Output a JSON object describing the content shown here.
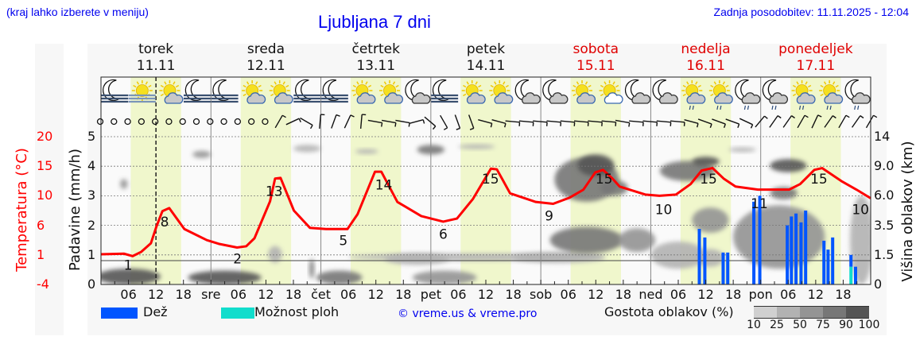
{
  "header": {
    "hint": "(kraj lahko izberete v meniju)",
    "title": "Ljubljana 7 dni",
    "updated": "Zadnja posodobitev: 11.11.2025 - 12:04"
  },
  "days": [
    {
      "name": "torek",
      "date": "11.11",
      "weekend": false
    },
    {
      "name": "sreda",
      "date": "12.11",
      "weekend": false
    },
    {
      "name": "četrtek",
      "date": "13.11",
      "weekend": false
    },
    {
      "name": "petek",
      "date": "14.11",
      "weekend": false
    },
    {
      "name": "sobota",
      "date": "15.11",
      "weekend": true
    },
    {
      "name": "nedelja",
      "date": "16.11",
      "weekend": true
    },
    {
      "name": "ponedeljek",
      "date": "17.11",
      "weekend": true
    }
  ],
  "axes": {
    "temp_label": "Temperatura (°C)",
    "rain_label": "Padavine (mm/h)",
    "cloud_label": "Višina oblakov (km)",
    "temp_ticks": [
      "20",
      "15",
      "10",
      "6",
      "1",
      "-4"
    ],
    "rain_ticks": [
      "5",
      "4",
      "3",
      "2",
      "1",
      "0"
    ],
    "cloud_ticks": [
      "14",
      "9.0",
      "6.0",
      "3.5",
      "1.5",
      "0"
    ],
    "x_ticks": [
      "06",
      "12",
      "18",
      "sre",
      "06",
      "12",
      "18",
      "čet",
      "06",
      "12",
      "18",
      "pet",
      "06",
      "12",
      "18",
      "sob",
      "06",
      "12",
      "18",
      "ned",
      "06",
      "12",
      "18",
      "pon",
      "06",
      "12",
      "18"
    ]
  },
  "legend": {
    "rain": "Dež",
    "showers": "Možnost ploh",
    "copyright": "© vreme.us & vreme.pro",
    "cloud_density": "Gostota oblakov (%)",
    "density_steps": [
      "10",
      "25",
      "50",
      "75",
      "90",
      "100"
    ]
  },
  "colors": {
    "rain": "#0055ff",
    "showers": "#11ddcc",
    "temp": "#ff0000",
    "daylight": "#f0f7cc",
    "title": "#0000ee",
    "density": [
      "#d0d0d0",
      "#b2b2b2",
      "#949494",
      "#777777",
      "#555555"
    ]
  },
  "chart_data": {
    "type": "line",
    "title": "Ljubljana 7 dni",
    "x_unit": "hours since Tue 11.11 00:00",
    "xlim": [
      0,
      168
    ],
    "now_hour": 12,
    "daylight_hours": [
      6.5,
      17.5
    ],
    "temperature": {
      "ylim": [
        -4,
        20
      ],
      "hours": [
        0,
        5,
        6.9,
        8.8,
        10.9,
        12.1,
        13.4,
        14.9,
        18.2,
        23.1,
        25.7,
        29.7,
        31.7,
        33.5,
        36.9,
        38,
        39.2,
        42.1,
        45.6,
        49.1,
        53.8,
        56,
        59.8,
        61.2,
        64.7,
        69.9,
        74.7,
        77.7,
        81.2,
        85.1,
        86.4,
        89.3,
        94.9,
        98.7,
        102.3,
        105.3,
        107.9,
        109.6,
        111.5,
        113.2,
        118.8,
        121.9,
        125.5,
        128.7,
        131.1,
        133.5,
        135.9,
        138.5,
        143.4,
        150.2,
        152.6,
        155.7,
        157.4,
        161.8,
        164.9,
        168
      ],
      "values": [
        0.9,
        1.0,
        0.6,
        1.3,
        2.7,
        5.4,
        7.9,
        8.4,
        5.0,
        3.2,
        2.6,
        2.0,
        2.2,
        3.5,
        9.5,
        13.2,
        13.3,
        8.0,
        5.2,
        5.0,
        5.0,
        7.4,
        14.3,
        14.3,
        9.4,
        7.1,
        6.2,
        6.7,
        9.9,
        14.8,
        14.7,
        10.8,
        9.4,
        9.1,
        10.1,
        11.4,
        14.2,
        14.6,
        13.3,
        11.9,
        10.6,
        10.4,
        10.6,
        12.3,
        14.5,
        14.9,
        13.2,
        11.9,
        11.4,
        11.4,
        12.3,
        14.6,
        14.9,
        12.7,
        11.4,
        10.0
      ],
      "labels": [
        {
          "h": 5.9,
          "v": "1"
        },
        {
          "h": 13.9,
          "v": "8"
        },
        {
          "h": 29.8,
          "v": "2"
        },
        {
          "h": 37.8,
          "v": "13"
        },
        {
          "h": 52.9,
          "v": "5"
        },
        {
          "h": 61.7,
          "v": "14"
        },
        {
          "h": 74.7,
          "v": "6"
        },
        {
          "h": 85,
          "v": "15"
        },
        {
          "h": 97.8,
          "v": "9"
        },
        {
          "h": 109.8,
          "v": "15"
        },
        {
          "h": 122.8,
          "v": "10"
        },
        {
          "h": 132.6,
          "v": "15"
        },
        {
          "h": 143.7,
          "v": "11"
        },
        {
          "h": 156.7,
          "v": "15"
        },
        {
          "h": 167.6,
          "v": "10"
        }
      ]
    },
    "precipitation": {
      "ylim": [
        0,
        5
      ],
      "bars": [
        {
          "h": 130.6,
          "rain": 1.88,
          "showers": 0
        },
        {
          "h": 131.8,
          "rain": 1.59,
          "showers": 0
        },
        {
          "h": 135.8,
          "rain": 1.08,
          "showers": 0
        },
        {
          "h": 136.8,
          "rain": 1.08,
          "showers": 0
        },
        {
          "h": 142.5,
          "rain": 2.8,
          "showers": 0
        },
        {
          "h": 143.8,
          "rain": 3.0,
          "showers": 0
        },
        {
          "h": 149.8,
          "rain": 2.0,
          "showers": 0
        },
        {
          "h": 150.7,
          "rain": 2.3,
          "showers": 0
        },
        {
          "h": 151.7,
          "rain": 2.4,
          "showers": 0
        },
        {
          "h": 152.8,
          "rain": 2.1,
          "showers": 0
        },
        {
          "h": 153.8,
          "rain": 2.5,
          "showers": 0
        },
        {
          "h": 157.8,
          "rain": 1.48,
          "showers": 0
        },
        {
          "h": 158.7,
          "rain": 1.18,
          "showers": 0
        },
        {
          "h": 159.7,
          "rain": 1.59,
          "showers": 0
        },
        {
          "h": 163.7,
          "rain": 0.4,
          "showers": 0.6
        },
        {
          "h": 164.7,
          "rain": 0.6,
          "showers": 0
        }
      ]
    },
    "cloud_scale_km": [
      0,
      1.5,
      3.5,
      6,
      9,
      14
    ],
    "clouds": [
      {
        "h": 6,
        "km": 0.4,
        "dh": 7,
        "dkm": 0.4,
        "d": 90
      },
      {
        "h": 27,
        "km": 0.35,
        "dh": 8,
        "dkm": 0.35,
        "d": 90
      },
      {
        "h": 52,
        "km": 0.35,
        "dh": 5,
        "dkm": 0.35,
        "d": 85
      },
      {
        "h": 75,
        "km": 0.35,
        "dh": 7,
        "dkm": 0.35,
        "d": 70
      },
      {
        "h": 82,
        "km": 1.4,
        "dh": 28,
        "dkm": 0.2,
        "d": 35
      },
      {
        "h": 100,
        "km": 1.4,
        "dh": 10,
        "dkm": 0.3,
        "d": 40
      },
      {
        "h": 106,
        "km": 2.5,
        "dh": 8,
        "dkm": 0.9,
        "d": 75
      },
      {
        "h": 106,
        "km": 8,
        "dh": 7,
        "dkm": 2.5,
        "d": 75
      },
      {
        "h": 108,
        "km": 9.5,
        "dh": 4,
        "dkm": 1.5,
        "d": 95
      },
      {
        "h": 112,
        "km": 6.8,
        "dh": 3,
        "dkm": 0.8,
        "d": 80
      },
      {
        "h": 117,
        "km": 2.5,
        "dh": 4,
        "dkm": 0.8,
        "d": 60
      },
      {
        "h": 128,
        "km": 8.7,
        "dh": 6,
        "dkm": 1.2,
        "d": 75
      },
      {
        "h": 132,
        "km": 9.8,
        "dh": 3,
        "dkm": 0.8,
        "d": 90
      },
      {
        "h": 133,
        "km": 4,
        "dh": 4,
        "dkm": 1,
        "d": 50
      },
      {
        "h": 133,
        "km": 1.4,
        "dh": 3,
        "dkm": 0.5,
        "d": 40
      },
      {
        "h": 148,
        "km": 3,
        "dh": 10,
        "dkm": 2.2,
        "d": 50
      },
      {
        "h": 149,
        "km": 6.3,
        "dh": 3,
        "dkm": 0.6,
        "d": 80
      },
      {
        "h": 150,
        "km": 9.3,
        "dh": 4,
        "dkm": 0.9,
        "d": 95
      },
      {
        "h": 140,
        "km": 11.8,
        "dh": 3,
        "dkm": 0.3,
        "d": 40
      },
      {
        "h": 166,
        "km": 3,
        "dh": 2.5,
        "dkm": 3,
        "d": 45
      },
      {
        "h": 22,
        "km": 11,
        "dh": 2,
        "dkm": 0.6,
        "d": 60
      },
      {
        "h": 45,
        "km": 12,
        "dh": 3,
        "dkm": 0.6,
        "d": 45
      },
      {
        "h": 5,
        "km": 7.2,
        "dh": 0.8,
        "dkm": 0.5,
        "d": 50
      },
      {
        "h": 58,
        "km": 11.5,
        "dh": 2.5,
        "dkm": 0.4,
        "d": 35
      },
      {
        "h": 72,
        "km": 11.8,
        "dh": 3,
        "dkm": 0.8,
        "d": 85
      },
      {
        "h": 82,
        "km": 12.3,
        "dh": 4,
        "dkm": 0.4,
        "d": 35
      },
      {
        "h": 38,
        "km": 1.6,
        "dh": 1.5,
        "dkm": 0.5,
        "d": 25
      },
      {
        "h": 46,
        "km": 0.8,
        "dh": 0.5,
        "dkm": 0.5,
        "d": 85
      },
      {
        "h": 69,
        "km": 1.3,
        "dh": 7,
        "dkm": 0.3,
        "d": 45
      },
      {
        "h": 126,
        "km": 1.6,
        "dh": 6,
        "dkm": 0.8,
        "d": 40
      }
    ],
    "weather_icons": [
      "moon-fog",
      "sun-fog",
      "sun-cloud",
      "moon-fog",
      "moon-fog",
      "sun-cloud",
      "sun-cloud",
      "moon-fog",
      "moon-fog",
      "sun-cloud",
      "sun-cloud",
      "moon-cloud",
      "moon-fog",
      "sun-cloud",
      "sun-cloud",
      "moon-cloud",
      "moon-cloud",
      "sun-cloud",
      "sun-cloud",
      "moon-cloud",
      "moon-cloud",
      "sun-cloud-rain",
      "sun-cloud-rain",
      "moon-cloud-rain",
      "moon-cloud-rain",
      "sun-cloud-rain",
      "sun-cloud-rain",
      "moon-cloud-rain"
    ],
    "wind_tilt_deg": [
      null,
      null,
      null,
      null,
      null,
      null,
      null,
      null,
      null,
      null,
      null,
      null,
      null,
      60,
      25,
      -30,
      85,
      70,
      65,
      85,
      -10,
      -10,
      -10,
      15,
      -40,
      -60,
      -70,
      -70,
      -15,
      -15,
      -5,
      -5,
      -5,
      -5,
      -5,
      -5,
      -5,
      -5,
      -10,
      -5,
      -5,
      -5,
      -5,
      -15,
      -20,
      -20,
      -20,
      -25,
      50,
      55,
      55,
      60,
      65,
      55,
      60,
      55,
      60
    ]
  }
}
